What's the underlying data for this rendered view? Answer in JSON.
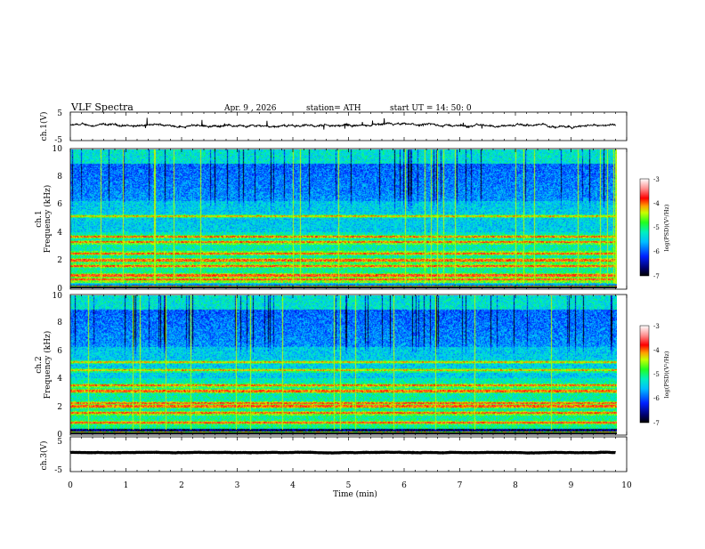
{
  "header": {
    "title": "VLF  Spectra",
    "date": "Apr. 9  , 2026",
    "station": "station= ATH",
    "start_ut": "start  UT  =   14: 50: 0"
  },
  "chart_data": [
    {
      "type": "line",
      "panel": "ch1-waveform",
      "ylabel": "ch.1(V)",
      "ylim": [
        -5,
        5
      ],
      "yticks": [
        "5",
        "-5"
      ],
      "x_range_min": [
        0,
        9.8
      ],
      "baseline_v": 0.3,
      "noise_v": 0.4
    },
    {
      "type": "heatmap",
      "panel": "ch1-spectrogram",
      "ylabel_line1": "ch.1",
      "ylabel_line2": "Frequency  (kHz)",
      "ylim": [
        0,
        10
      ],
      "yticks": [
        "0",
        "2",
        "4",
        "6",
        "8",
        "10"
      ],
      "x_range_min": [
        0,
        9.8
      ],
      "colorbar": {
        "label": "log(PSD)(V²/Hz)",
        "range": [
          -7,
          -3
        ],
        "ticks": [
          "-3",
          "-4",
          "-5",
          "-6",
          "-7"
        ]
      },
      "bands_khz": [
        0.3,
        0.6,
        0.9,
        1.6,
        2.0,
        2.5,
        3.3,
        3.7,
        5.2
      ],
      "dark_band_khz": [
        6.5,
        9.0
      ]
    },
    {
      "type": "heatmap",
      "panel": "ch2-spectrogram",
      "ylabel_line1": "ch.2",
      "ylabel_line2": "Frequency  (kHz)",
      "ylim": [
        0,
        10
      ],
      "yticks": [
        "0",
        "2",
        "4",
        "6",
        "8",
        "10"
      ],
      "x_range_min": [
        0,
        9.8
      ],
      "colorbar": {
        "label": "log(PSD)(V²/Hz)",
        "range": [
          -7,
          -3
        ],
        "ticks": [
          "-3",
          "-4",
          "-5",
          "-6",
          "-7"
        ]
      },
      "bands_khz": [
        0.8,
        1.5,
        2.0,
        2.2,
        3.1,
        3.5,
        4.6,
        5.2
      ],
      "dark_band_khz": [
        6.5,
        9.0
      ]
    },
    {
      "type": "line",
      "panel": "ch3-waveform",
      "ylabel": "ch.3(V)",
      "ylim": [
        -5,
        5
      ],
      "yticks": [
        "5",
        "-5"
      ],
      "x_range_min": [
        0,
        9.8
      ],
      "baseline_v": 0.5,
      "noise_v": 0.05
    }
  ],
  "xaxis": {
    "label": "Time  (min)",
    "ticks": [
      "0",
      "1",
      "2",
      "3",
      "4",
      "5",
      "6",
      "7",
      "8",
      "9",
      "10"
    ],
    "range": [
      0,
      10
    ]
  }
}
